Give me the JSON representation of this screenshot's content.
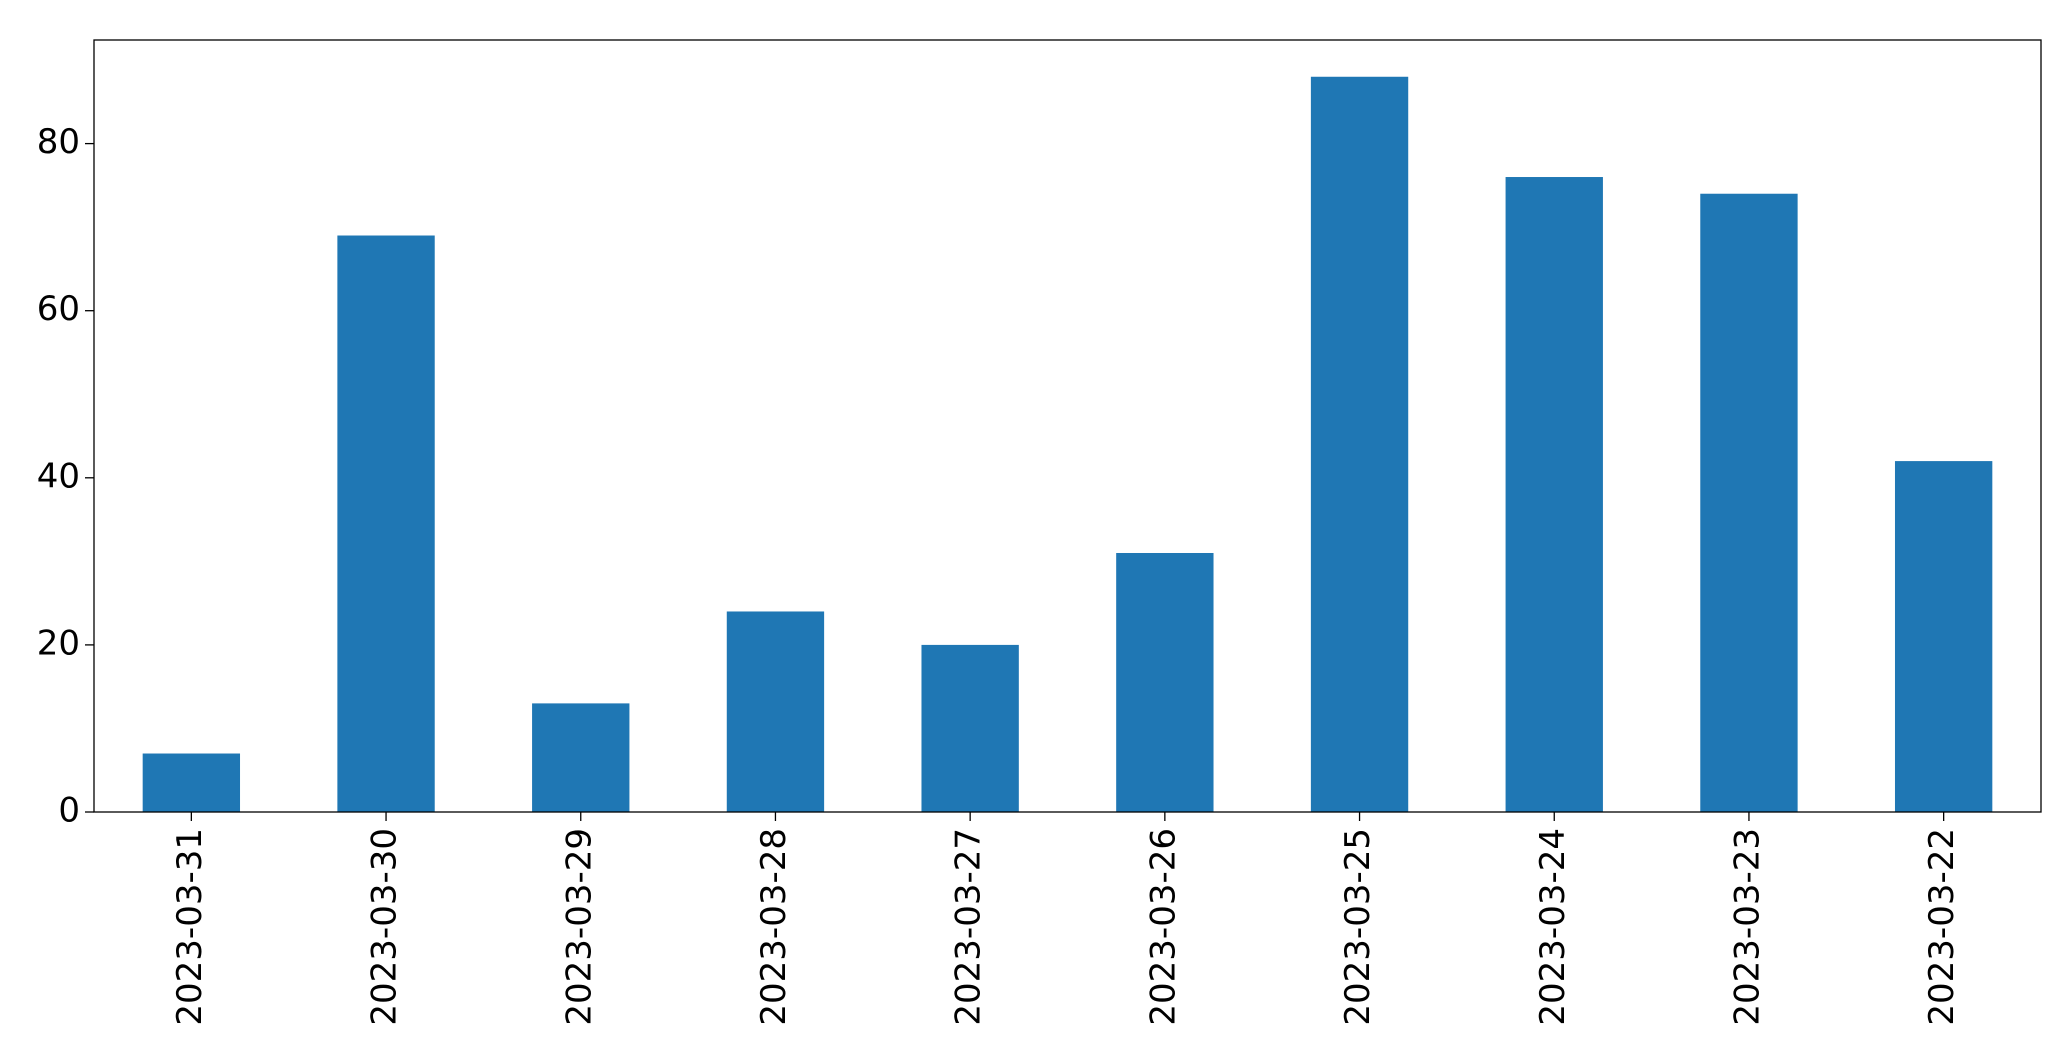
{
  "chart_data": {
    "type": "bar",
    "categories": [
      "2023-03-31",
      "2023-03-30",
      "2023-03-29",
      "2023-03-28",
      "2023-03-27",
      "2023-03-26",
      "2023-03-25",
      "2023-03-24",
      "2023-03-23",
      "2023-03-22"
    ],
    "values": [
      7,
      69,
      13,
      24,
      20,
      31,
      88,
      76,
      74,
      42
    ],
    "color": "#1f77b4",
    "ylim": [
      0,
      92.4
    ],
    "yticks": [
      0,
      20,
      40,
      60,
      80
    ],
    "grid": false
  }
}
